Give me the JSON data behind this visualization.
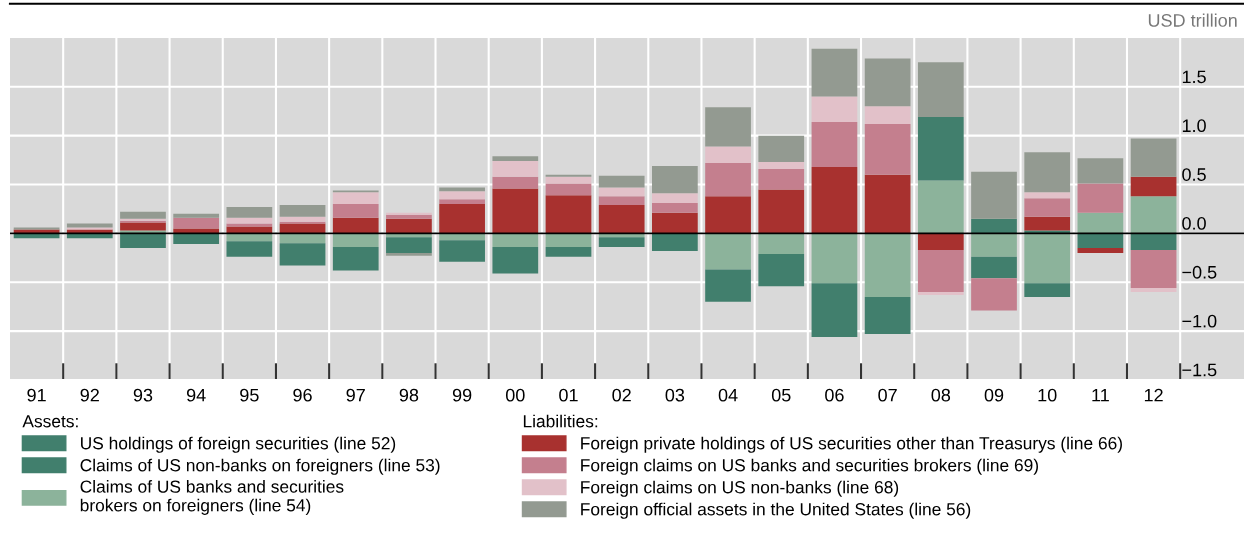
{
  "chart_data": {
    "type": "bar",
    "stacked": true,
    "ylabel": "USD trillion",
    "categories": [
      "91",
      "92",
      "93",
      "94",
      "95",
      "96",
      "97",
      "98",
      "99",
      "00",
      "01",
      "02",
      "03",
      "04",
      "05",
      "06",
      "07",
      "08",
      "09",
      "10",
      "11",
      "12"
    ],
    "series": [
      {
        "name": "US holdings of foreign securities (line 52)",
        "color": "#417f6d",
        "values": [
          -0.05,
          -0.05,
          -0.15,
          -0.11,
          -0.16,
          -0.23,
          -0.24,
          -0.16,
          -0.22,
          -0.27,
          -0.1,
          -0.1,
          -0.18,
          -0.33,
          -0.33,
          -0.55,
          -0.38,
          0.65,
          -0.22,
          -0.14,
          -0.15,
          -0.17
        ]
      },
      {
        "name": "Claims of US non-banks on foreigners (line 53)",
        "color": "#417f6d",
        "values": [
          null,
          null,
          null,
          null,
          null,
          null,
          null,
          null,
          null,
          null,
          null,
          null,
          null,
          null,
          null,
          null,
          null,
          null,
          0.15,
          0.03,
          null,
          null
        ]
      },
      {
        "name": "Claims of US banks and securities\nbrokers on foreigners (line 54)",
        "color": "#8cb39b",
        "values": [
          null,
          null,
          0.03,
          null,
          -0.08,
          -0.1,
          -0.14,
          -0.04,
          -0.07,
          -0.14,
          -0.14,
          -0.04,
          null,
          -0.37,
          -0.21,
          -0.51,
          -0.65,
          0.54,
          -0.24,
          -0.51,
          0.21,
          0.38
        ]
      },
      {
        "name": "Foreign private holdings of US securities other than Treasurys (line 66)",
        "color": "#a8312f",
        "values": [
          0.04,
          0.04,
          0.08,
          0.05,
          0.07,
          0.1,
          0.16,
          0.15,
          0.3,
          0.46,
          0.39,
          0.29,
          0.21,
          0.38,
          0.45,
          0.68,
          0.6,
          -0.17,
          null,
          0.14,
          -0.05,
          0.2
        ]
      },
      {
        "name": "Foreign claims on US banks and securities brokers (line 69)",
        "color": "#c47f8e",
        "values": [
          null,
          null,
          0.02,
          0.11,
          0.03,
          0.02,
          0.14,
          0.04,
          0.05,
          0.12,
          0.12,
          0.09,
          0.1,
          0.34,
          0.21,
          0.46,
          0.52,
          -0.43,
          -0.33,
          0.19,
          0.3,
          -0.39
        ]
      },
      {
        "name": "Foreign claims on US non-banks (line 68)",
        "color": "#e2c1c9",
        "values": [
          null,
          0.02,
          0.02,
          null,
          0.06,
          0.05,
          0.12,
          0.02,
          0.08,
          0.16,
          0.07,
          0.09,
          0.1,
          0.17,
          0.07,
          0.26,
          0.18,
          -0.03,
          null,
          0.06,
          null,
          -0.04
        ]
      },
      {
        "name": "Foreign official assets in the United States (line 56)",
        "color": "#939a91",
        "values": [
          0.02,
          0.04,
          0.07,
          0.04,
          0.11,
          0.12,
          0.02,
          -0.03,
          0.04,
          0.05,
          0.02,
          0.12,
          0.28,
          0.4,
          0.27,
          0.49,
          0.49,
          0.56,
          0.48,
          0.41,
          0.26,
          0.39
        ]
      }
    ],
    "ylim": [
      -1.5,
      2.0
    ],
    "yticks": [
      {
        "value": -1.5,
        "label": "−1.5"
      },
      {
        "value": -1.0,
        "label": "−1.0"
      },
      {
        "value": -0.5,
        "label": "−0.5"
      },
      {
        "value": 0.0,
        "label": "0.0"
      },
      {
        "value": 0.5,
        "label": "0.5"
      },
      {
        "value": 1.0,
        "label": "1.0"
      },
      {
        "value": 1.5,
        "label": "1.5"
      }
    ],
    "ref_lines": [
      {
        "axis": "y",
        "value": 0,
        "color": "#000000"
      }
    ],
    "annotations": [
      "Assets:",
      "Liabilities:"
    ],
    "grid": true,
    "legend": "bottom"
  }
}
